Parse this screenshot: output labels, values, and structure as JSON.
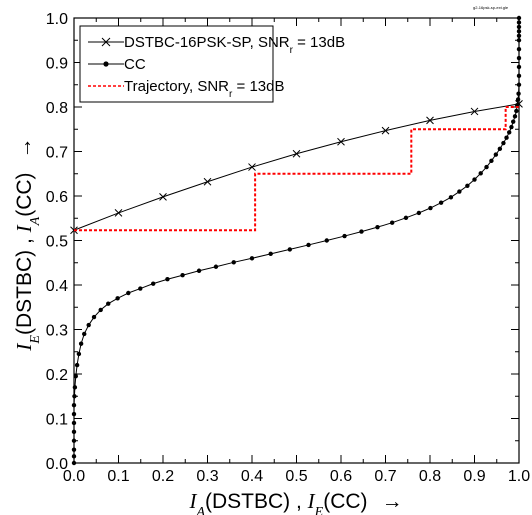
{
  "chart_data": {
    "type": "line",
    "file_tag": "g2-16psk-sp-ext.gle",
    "xlim": [
      0.0,
      1.0
    ],
    "ylim": [
      0.0,
      1.0
    ],
    "ticks": [
      "0.0",
      "0.1",
      "0.2",
      "0.3",
      "0.4",
      "0.5",
      "0.6",
      "0.7",
      "0.8",
      "0.9",
      "1.0"
    ],
    "xlabel": {
      "main": "I",
      "sub": "A",
      "mid": "(DSTBC) , ",
      "main2": "I",
      "sub2": "E",
      "tail": "(CC)",
      "arrow": "→"
    },
    "ylabel": {
      "main": "I",
      "sub": "E",
      "mid": "(DSTBC) , ",
      "main2": "I",
      "sub2": "A",
      "tail": "(CC)",
      "arrow": "→"
    },
    "legend": [
      {
        "label": "DSTBC-16PSK-SP, SNR",
        "sub": "r",
        "tail": " = 13dB",
        "style": "cross"
      },
      {
        "label": "CC",
        "sub": "",
        "tail": "",
        "style": "dot"
      },
      {
        "label": "Trajectory, SNR",
        "sub": "r",
        "tail": " = 13dB",
        "style": "dash"
      }
    ],
    "series": [
      {
        "name": "DSTBC-16PSK-SP, SNR_r = 13dB",
        "color": "#000000",
        "x": [
          0.0,
          0.1,
          0.2,
          0.3,
          0.4,
          0.5,
          0.6,
          0.7,
          0.8,
          0.9,
          1.0
        ],
        "y": [
          0.523,
          0.562,
          0.598,
          0.632,
          0.665,
          0.695,
          0.722,
          0.747,
          0.77,
          0.79,
          0.807
        ]
      },
      {
        "name": "CC",
        "color": "#000000",
        "x": [
          0.0,
          0.0,
          0.0,
          0.0,
          0.0,
          0.0,
          0.0,
          0.0,
          0.001,
          0.002,
          0.004,
          0.007,
          0.011,
          0.016,
          0.023,
          0.033,
          0.045,
          0.06,
          0.077,
          0.098,
          0.122,
          0.149,
          0.178,
          0.21,
          0.244,
          0.281,
          0.319,
          0.359,
          0.4,
          0.442,
          0.485,
          0.527,
          0.568,
          0.608,
          0.646,
          0.682,
          0.715,
          0.746,
          0.775,
          0.801,
          0.825,
          0.847,
          0.866,
          0.884,
          0.9,
          0.914,
          0.927,
          0.938,
          0.948,
          0.957,
          0.965,
          0.972,
          0.978,
          0.983,
          0.987,
          0.991,
          0.994,
          0.996,
          0.998,
          0.999,
          1.0,
          1.0,
          1.0,
          1.0,
          1.0,
          1.0,
          1.0,
          1.0,
          1.0,
          1.0,
          1.0
        ],
        "y": [
          0.0,
          0.015,
          0.03,
          0.05,
          0.07,
          0.09,
          0.11,
          0.13,
          0.15,
          0.17,
          0.195,
          0.22,
          0.245,
          0.268,
          0.29,
          0.31,
          0.328,
          0.344,
          0.358,
          0.37,
          0.382,
          0.392,
          0.403,
          0.413,
          0.422,
          0.432,
          0.441,
          0.451,
          0.46,
          0.47,
          0.48,
          0.49,
          0.5,
          0.51,
          0.52,
          0.53,
          0.54,
          0.551,
          0.562,
          0.573,
          0.585,
          0.597,
          0.61,
          0.623,
          0.637,
          0.651,
          0.665,
          0.679,
          0.693,
          0.706,
          0.719,
          0.731,
          0.743,
          0.755,
          0.767,
          0.779,
          0.791,
          0.804,
          0.817,
          0.83,
          0.85,
          0.87,
          0.89,
          0.91,
          0.93,
          0.95,
          0.96,
          0.97,
          0.98,
          0.99,
          1.0
        ]
      },
      {
        "name": "Trajectory, SNR_r = 13dB",
        "color": "#ff0000",
        "x": [
          0.0,
          0.407,
          0.407,
          0.758,
          0.758,
          0.97,
          0.97,
          1.0
        ],
        "y": [
          0.523,
          0.523,
          0.65,
          0.65,
          0.75,
          0.75,
          0.8,
          0.8
        ]
      }
    ]
  }
}
